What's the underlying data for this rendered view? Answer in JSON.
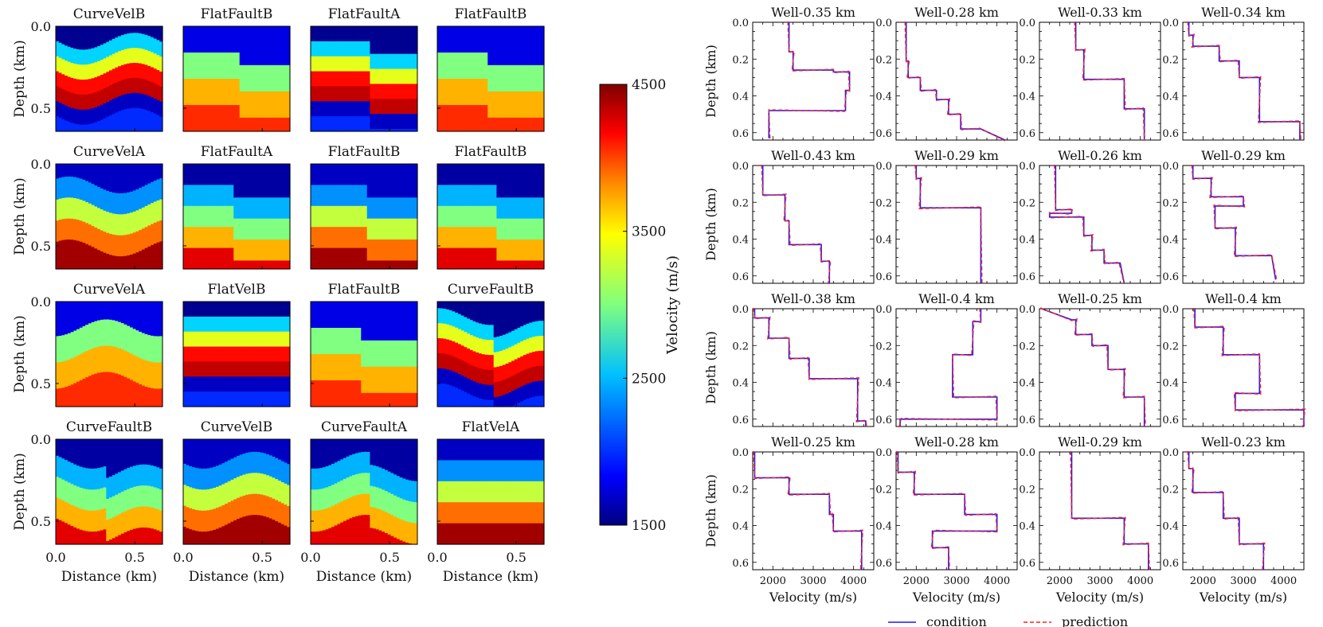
{
  "figure": {
    "left_panel": {
      "titles": [
        [
          "CurveVelB",
          "FlatFaultB",
          "FlatFaultA",
          "FlatFaultB"
        ],
        [
          "CurveVelA",
          "FlatFaultA",
          "FlatFaultB",
          "FlatFaultB"
        ],
        [
          "CurveVelA",
          "FlatVelB",
          "FlatFaultB",
          "CurveFaultB"
        ],
        [
          "CurveFaultB",
          "CurveVelB",
          "CurveFaultA",
          "FlatVelA"
        ]
      ],
      "ylabel": "Depth (km)",
      "xlabel": "Distance (km)",
      "yticks": [
        "0.0",
        "0.5"
      ],
      "xticks": [
        "0.0",
        "0.5"
      ],
      "colorbar": {
        "label": "Velocity (m/s)",
        "min": 1500,
        "max": 4500,
        "ticks": [
          "4500",
          "3500",
          "2500",
          "1500"
        ]
      }
    },
    "right_panel": {
      "ylabel": "Depth (km)",
      "xlabel": "Velocity (m/s)",
      "yticks": [
        "0.0",
        "0.2",
        "0.4",
        "0.6"
      ],
      "xticks": [
        "2000",
        "3000",
        "4000"
      ],
      "legend": {
        "condition": "condition",
        "prediction": "prediction"
      }
    }
  },
  "chart_data": {
    "type": "line",
    "xlabel": "Velocity (m/s)",
    "ylabel": "Depth (km)",
    "xlim": [
      1500,
      4500
    ],
    "ylim": [
      0.64,
      0.0
    ],
    "colors": {
      "condition": "#1a1aff",
      "prediction": "#ff2222"
    },
    "wells": [
      {
        "title": "Well-0.35 km",
        "depth": [
          0.0,
          0.16,
          0.16,
          0.26,
          0.26,
          0.27,
          0.27,
          0.37,
          0.37,
          0.48,
          0.48,
          0.63
        ],
        "velocity": [
          2400,
          2400,
          2500,
          2500,
          3500,
          3500,
          3900,
          3900,
          3800,
          3800,
          1900,
          1900
        ]
      },
      {
        "title": "Well-0.28 km",
        "depth": [
          0.0,
          0.21,
          0.21,
          0.3,
          0.3,
          0.37,
          0.37,
          0.42,
          0.42,
          0.5,
          0.5,
          0.58,
          0.58,
          0.64
        ],
        "velocity": [
          1750,
          1750,
          1800,
          1800,
          2100,
          2100,
          2500,
          2500,
          2800,
          2800,
          3100,
          3100,
          3600,
          4200
        ]
      },
      {
        "title": "Well-0.33 km",
        "depth": [
          0.0,
          0.15,
          0.15,
          0.31,
          0.31,
          0.47,
          0.47,
          0.64
        ],
        "velocity": [
          2400,
          2400,
          2600,
          2600,
          3600,
          3600,
          4100,
          4100
        ]
      },
      {
        "title": "Well-0.34 km",
        "depth": [
          0.0,
          0.07,
          0.07,
          0.13,
          0.13,
          0.21,
          0.21,
          0.3,
          0.3,
          0.54,
          0.54,
          0.64
        ],
        "velocity": [
          1650,
          1650,
          1750,
          1750,
          2400,
          2400,
          2900,
          2900,
          3400,
          3400,
          4400,
          4400
        ]
      },
      {
        "title": "Well-0.43 km",
        "depth": [
          0.0,
          0.16,
          0.16,
          0.3,
          0.3,
          0.43,
          0.43,
          0.52,
          0.52,
          0.64
        ],
        "velocity": [
          1750,
          1750,
          2300,
          2300,
          2400,
          2400,
          3200,
          3200,
          3400,
          3400
        ]
      },
      {
        "title": "Well-0.29 km",
        "depth": [
          0.0,
          0.07,
          0.07,
          0.23,
          0.23,
          0.64
        ],
        "velocity": [
          2000,
          2000,
          2100,
          2100,
          3600,
          3600
        ]
      },
      {
        "title": "Well-0.26 km",
        "depth": [
          0.0,
          0.24,
          0.24,
          0.26,
          0.26,
          0.28,
          0.28,
          0.38,
          0.38,
          0.46,
          0.46,
          0.53,
          0.53,
          0.64
        ],
        "velocity": [
          1900,
          1900,
          2300,
          2300,
          1750,
          1750,
          2600,
          2600,
          2800,
          2800,
          3100,
          3100,
          3500,
          3600
        ]
      },
      {
        "title": "Well-0.29 km",
        "depth": [
          0.0,
          0.07,
          0.07,
          0.17,
          0.17,
          0.22,
          0.22,
          0.34,
          0.34,
          0.49,
          0.49,
          0.62
        ],
        "velocity": [
          1750,
          1750,
          2200,
          2200,
          3000,
          3000,
          2300,
          2300,
          2800,
          2800,
          3700,
          3800
        ]
      },
      {
        "title": "Well-0.38 km",
        "depth": [
          0.0,
          0.05,
          0.05,
          0.16,
          0.16,
          0.27,
          0.27,
          0.38,
          0.38,
          0.61,
          0.61,
          0.64
        ],
        "velocity": [
          1550,
          1550,
          1900,
          1900,
          2400,
          2400,
          2900,
          2900,
          4100,
          4100,
          4300,
          4300
        ]
      },
      {
        "title": "Well-0.4 km",
        "depth": [
          0.0,
          0.07,
          0.07,
          0.25,
          0.25,
          0.48,
          0.48,
          0.6,
          0.6,
          0.64
        ],
        "velocity": [
          3600,
          3600,
          3400,
          3400,
          2900,
          2900,
          4000,
          4000,
          1600,
          1600
        ]
      },
      {
        "title": "Well-0.25 km",
        "depth": [
          0.0,
          0.06,
          0.06,
          0.14,
          0.14,
          0.2,
          0.2,
          0.33,
          0.33,
          0.48,
          0.48,
          0.64
        ],
        "velocity": [
          1550,
          2300,
          2400,
          2400,
          2800,
          2800,
          3200,
          3200,
          3600,
          3600,
          4100,
          4100
        ]
      },
      {
        "title": "Well-0.4 km",
        "depth": [
          0.0,
          0.1,
          0.1,
          0.25,
          0.25,
          0.46,
          0.46,
          0.55,
          0.55,
          0.64
        ],
        "velocity": [
          1800,
          1800,
          2500,
          2500,
          3400,
          3400,
          2800,
          2800,
          4500,
          4500
        ]
      },
      {
        "title": "Well-0.25 km",
        "depth": [
          0.0,
          0.14,
          0.14,
          0.23,
          0.23,
          0.34,
          0.34,
          0.43,
          0.43,
          0.64
        ],
        "velocity": [
          1550,
          1550,
          2400,
          2400,
          3400,
          3400,
          3500,
          3500,
          4200,
          4200
        ]
      },
      {
        "title": "Well-0.28 km",
        "depth": [
          0.0,
          0.11,
          0.11,
          0.23,
          0.23,
          0.34,
          0.34,
          0.43,
          0.43,
          0.52,
          0.52,
          0.64
        ],
        "velocity": [
          1550,
          1550,
          1950,
          1950,
          3200,
          3200,
          4000,
          4000,
          2400,
          2400,
          2800,
          2800
        ]
      },
      {
        "title": "Well-0.29 km",
        "depth": [
          0.0,
          0.36,
          0.36,
          0.5,
          0.5,
          0.64
        ],
        "velocity": [
          2300,
          2300,
          3600,
          3600,
          4200,
          4200
        ]
      },
      {
        "title": "Well-0.23 km",
        "depth": [
          0.0,
          0.09,
          0.09,
          0.22,
          0.22,
          0.36,
          0.36,
          0.5,
          0.5,
          0.64
        ],
        "velocity": [
          1650,
          1650,
          1750,
          1750,
          2500,
          2500,
          2900,
          2900,
          3500,
          3500
        ]
      }
    ]
  }
}
